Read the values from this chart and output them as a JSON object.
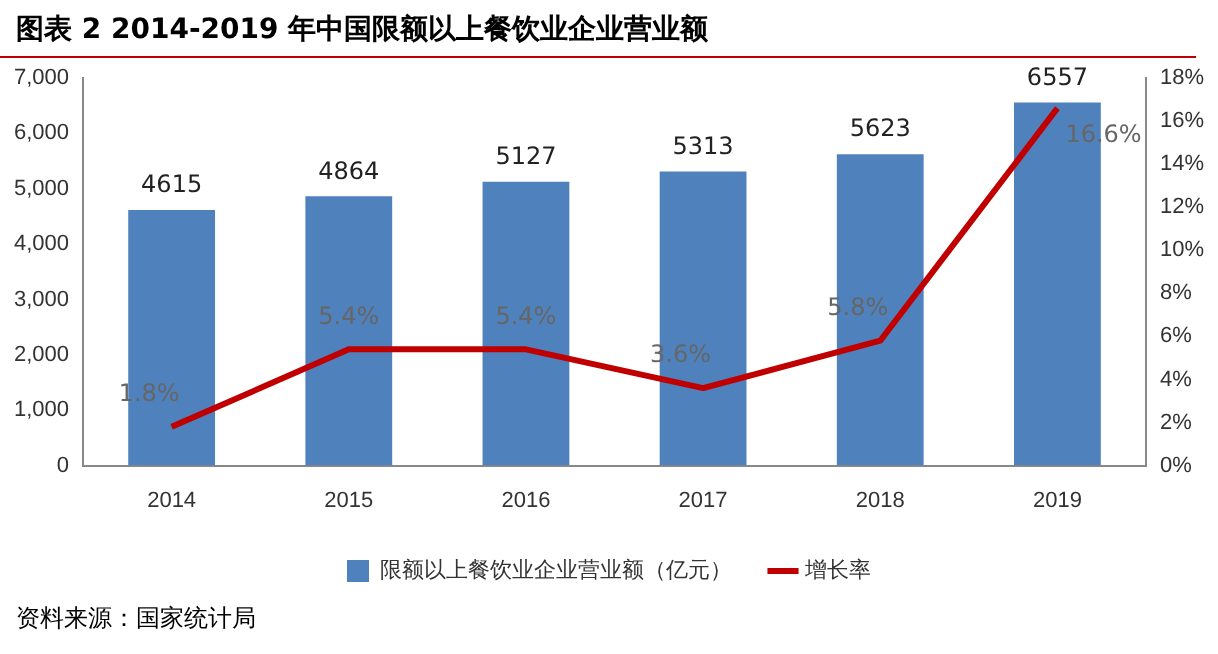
{
  "chart_data": {
    "type": "bar",
    "title": "图表 2 2014-2019 年中国限额以上餐饮业企业营业额",
    "categories": [
      "2014",
      "2015",
      "2016",
      "2017",
      "2018",
      "2019"
    ],
    "series": [
      {
        "name": "限额以上餐饮业企业营业额（亿元）",
        "color": "#4f81bd",
        "values": [
          4615,
          4864,
          5127,
          5313,
          5623,
          6557
        ],
        "value_labels": [
          "4615",
          "4864",
          "5127",
          "5313",
          "5623",
          "6557"
        ]
      },
      {
        "name": "增长率",
        "type": "line",
        "axis": "y2",
        "color": "#c00000",
        "values": [
          1.8,
          5.4,
          5.4,
          3.6,
          5.8,
          16.6
        ],
        "value_labels": [
          "1.8%",
          "5.4%",
          "5.4%",
          "3.6%",
          "5.8%",
          "16.6%"
        ]
      }
    ],
    "ylim": [
      0,
      7000
    ],
    "yticks": [
      0,
      {
        "value": 1000,
        "label": "1,000"
      },
      {
        "value": 2000,
        "label": "2,000"
      },
      {
        "value": 3000,
        "label": "3,000"
      },
      {
        "value": 4000,
        "label": "4,000"
      },
      {
        "value": 5000,
        "label": "5,000"
      },
      {
        "value": 6000,
        "label": "6,000"
      },
      {
        "value": 7000,
        "label": "7,000"
      }
    ],
    "y2lim": [
      0,
      18
    ],
    "y2ticks": [
      {
        "value": 0,
        "label": "0%"
      },
      {
        "value": 2,
        "label": "2%"
      },
      {
        "value": 4,
        "label": "4%"
      },
      {
        "value": 6,
        "label": "6%"
      },
      {
        "value": 8,
        "label": "8%"
      },
      {
        "value": 10,
        "label": "10%"
      },
      {
        "value": 12,
        "label": "12%"
      },
      {
        "value": 14,
        "label": "14%"
      },
      {
        "value": 16,
        "label": "16%"
      },
      {
        "value": 18,
        "label": "18%"
      }
    ],
    "legend": "bottom",
    "grid": false,
    "marker": "none",
    "annotations": [
      "资料来源：国家统计局"
    ]
  }
}
